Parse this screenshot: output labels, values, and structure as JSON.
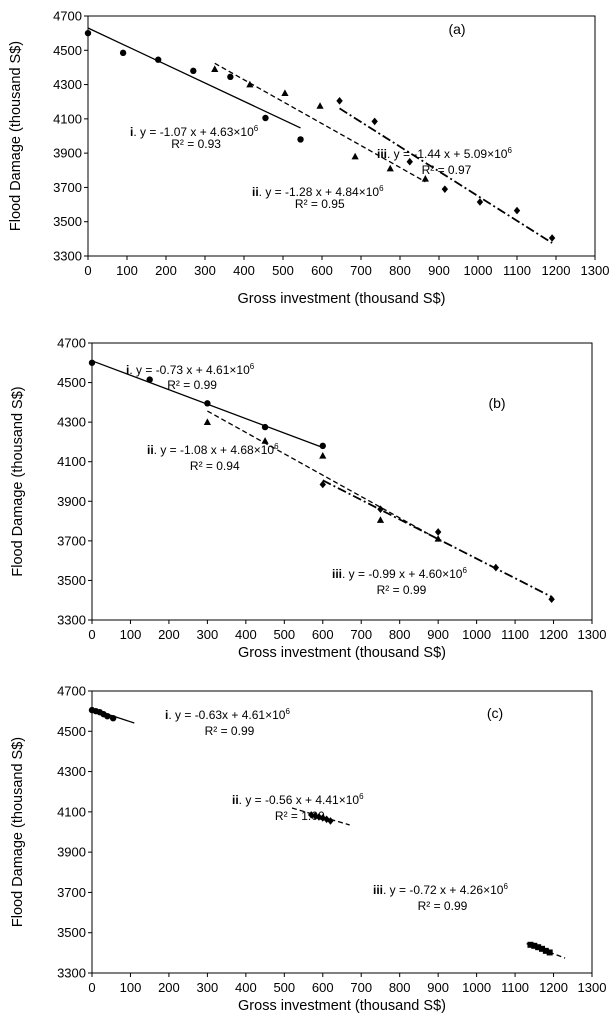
{
  "colors": {
    "mark": "#000000",
    "frame": "#000000",
    "background": "#ffffff"
  },
  "chart_data": [
    {
      "type": "scatter",
      "panel_label": "(a)",
      "xlabel": "Gross investment  (thousand S$)",
      "ylabel": "Flood Damage (thousand S$)",
      "xlim": [
        0,
        1300
      ],
      "ylim": [
        3300,
        4700
      ],
      "x_ticks": [
        "0",
        "100",
        "200",
        "300",
        "400",
        "500",
        "600",
        "700",
        "800",
        "900",
        "1000",
        "1100",
        "1200",
        "1300"
      ],
      "y_ticks": [
        "3300",
        "3500",
        "3700",
        "3900",
        "4100",
        "4300",
        "4500",
        "4700"
      ],
      "grid": false,
      "series": [
        {
          "marker": "circle",
          "line": "solid",
          "x": [
            0,
            90,
            180,
            270,
            365,
            455,
            545
          ],
          "y": [
            4600,
            4485,
            4445,
            4380,
            4345,
            4105,
            3980
          ],
          "fit": {
            "x": [
              0,
              545
            ],
            "y": [
              4630,
              4047
            ]
          },
          "label": {
            "num": "i",
            "eq": ". y = -1.07 x + 4.63×10",
            "exp": "6",
            "r2": "R² = 0.93"
          }
        },
        {
          "marker": "triangle",
          "line": "dashed",
          "x": [
            325,
            415,
            505,
            595,
            685,
            775,
            865
          ],
          "y": [
            4390,
            4300,
            4250,
            4175,
            3880,
            3810,
            3750
          ],
          "fit": {
            "x": [
              325,
              865
            ],
            "y": [
              4424,
              3733
            ]
          },
          "label": {
            "num": "ii",
            "eq": ". y = -1.28 x + 4.84×10",
            "exp": "6",
            "r2": "R² = 0.95"
          }
        },
        {
          "marker": "diamond",
          "line": "dashdot",
          "x": [
            645,
            735,
            825,
            915,
            1005,
            1100,
            1190
          ],
          "y": [
            4205,
            4085,
            3850,
            3690,
            3615,
            3565,
            3405
          ],
          "fit": {
            "x": [
              645,
              1190
            ],
            "y": [
              4161,
              3376
            ]
          },
          "label": {
            "num": "iii",
            "eq": ". y = -1.44 x + 5.09×10",
            "exp": "6",
            "r2": "R² = 0.97"
          }
        }
      ]
    },
    {
      "type": "scatter",
      "panel_label": "(b)",
      "xlabel": "Gross investment  (thousand S$)",
      "ylabel": "Flood Damage (thousand S$)",
      "xlim": [
        0,
        1300
      ],
      "ylim": [
        3300,
        4700
      ],
      "x_ticks": [
        "0",
        "100",
        "200",
        "300",
        "400",
        "500",
        "600",
        "700",
        "800",
        "900",
        "1000",
        "1100",
        "1200",
        "1300"
      ],
      "y_ticks": [
        "3300",
        "3500",
        "3700",
        "3900",
        "4100",
        "4300",
        "4500",
        "4700"
      ],
      "grid": false,
      "series": [
        {
          "marker": "circle",
          "line": "solid",
          "x": [
            0,
            150,
            300,
            450,
            600
          ],
          "y": [
            4600,
            4515,
            4395,
            4275,
            4180
          ],
          "fit": {
            "x": [
              0,
              600
            ],
            "y": [
              4610,
              4172
            ]
          },
          "label": {
            "num": "i",
            "eq": ". y = -0.73 x + 4.61×10",
            "exp": "6",
            "r2": "R² = 0.99"
          }
        },
        {
          "marker": "triangle",
          "line": "dashed",
          "x": [
            300,
            450,
            600,
            750,
            900
          ],
          "y": [
            4300,
            4205,
            4130,
            3805,
            3710
          ],
          "fit": {
            "x": [
              300,
              900
            ],
            "y": [
              4356,
              3708
            ]
          },
          "label": {
            "num": "ii",
            "eq": ". y = -1.08 x + 4.68×10",
            "exp": "6",
            "r2": "R² = 0.94"
          }
        },
        {
          "marker": "diamond",
          "line": "dashdot",
          "x": [
            600,
            750,
            900,
            1050,
            1195
          ],
          "y": [
            3985,
            3860,
            3745,
            3565,
            3405
          ],
          "fit": {
            "x": [
              600,
              1195
            ],
            "y": [
              4006,
              3417
            ]
          },
          "label": {
            "num": "iii",
            "eq": ". y = -0.99 x + 4.60×10",
            "exp": "6",
            "r2": "R² = 0.99"
          }
        }
      ]
    },
    {
      "type": "scatter",
      "panel_label": "(c)",
      "xlabel": "Gross investment  (thousand S$)",
      "ylabel": "Flood Damage (thousand S$)",
      "xlim": [
        0,
        1300
      ],
      "ylim": [
        3300,
        4700
      ],
      "x_ticks": [
        "0",
        "100",
        "200",
        "300",
        "400",
        "500",
        "600",
        "700",
        "800",
        "900",
        "1000",
        "1100",
        "1200",
        "1300"
      ],
      "y_ticks": [
        "3300",
        "3500",
        "3700",
        "3900",
        "4100",
        "4300",
        "4500",
        "4700"
      ],
      "grid": false,
      "series": [
        {
          "marker": "circle",
          "line": "solid",
          "x": [
            0,
            10,
            20,
            30,
            40,
            55
          ],
          "y": [
            4605,
            4600,
            4595,
            4585,
            4575,
            4565
          ],
          "fit": {
            "x": [
              0,
              110
            ],
            "y": [
              4610,
              4541
            ]
          },
          "label": {
            "num": "i",
            "eq": ". y = -0.63x + 4.61×10",
            "exp": "6",
            "r2": "R² = 0.99"
          }
        },
        {
          "marker": "diamond",
          "line": "dashed",
          "x": [
            570,
            580,
            590,
            600,
            610,
            620
          ],
          "y": [
            4085,
            4080,
            4075,
            4070,
            4063,
            4055
          ],
          "fit": {
            "x": [
              520,
              670
            ],
            "y": [
              4119,
              4035
            ]
          },
          "label": {
            "num": "ii",
            "eq": ". y = -0.56 x + 4.41×10",
            "exp": "6",
            "r2": "R² = 1.00"
          }
        },
        {
          "marker": "square",
          "line": "dashed",
          "x": [
            1140,
            1150,
            1160,
            1170,
            1180,
            1190
          ],
          "y": [
            3440,
            3435,
            3428,
            3420,
            3410,
            3402
          ],
          "fit": {
            "x": [
              1130,
              1230
            ],
            "y": [
              3446,
              3374
            ]
          },
          "label": {
            "num": "iii",
            "eq": ". y = -0.72 x + 4.26×10",
            "exp": "6",
            "r2": "R² = 0.99"
          }
        }
      ]
    }
  ]
}
